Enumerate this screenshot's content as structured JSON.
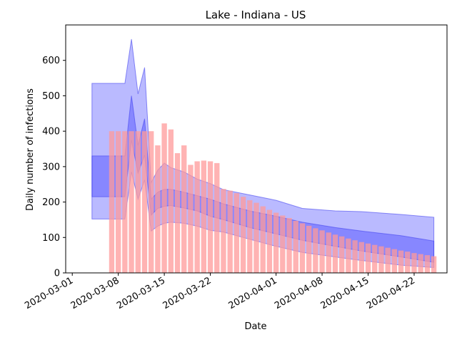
{
  "chart_data": {
    "type": "bar",
    "title": "Lake - Indiana - US",
    "xlabel": "Date",
    "ylabel": "Daily number of infections",
    "xlim": [
      "2020-02-29",
      "2020-04-27"
    ],
    "ylim": [
      0,
      700
    ],
    "x_ticks": [
      "2020-03-01",
      "2020-03-08",
      "2020-03-15",
      "2020-03-22",
      "2020-04-01",
      "2020-04-08",
      "2020-04-15",
      "2020-04-22"
    ],
    "y_ticks": [
      0,
      100,
      200,
      300,
      400,
      500,
      600
    ],
    "grid": false,
    "legend": "none",
    "colors": {
      "bars": "#ff9999",
      "band_fill": "#0000ff",
      "band_edge": "#4444ee"
    },
    "bars": {
      "x": [
        "2020-03-07",
        "2020-03-08",
        "2020-03-09",
        "2020-03-10",
        "2020-03-11",
        "2020-03-12",
        "2020-03-13",
        "2020-03-14",
        "2020-03-15",
        "2020-03-16",
        "2020-03-17",
        "2020-03-18",
        "2020-03-19",
        "2020-03-20",
        "2020-03-21",
        "2020-03-22",
        "2020-03-23",
        "2020-03-24",
        "2020-03-25",
        "2020-03-26",
        "2020-03-27",
        "2020-03-28",
        "2020-03-29",
        "2020-03-30",
        "2020-03-31",
        "2020-04-01",
        "2020-04-02",
        "2020-04-03",
        "2020-04-04",
        "2020-04-05",
        "2020-04-06",
        "2020-04-07",
        "2020-04-08",
        "2020-04-09",
        "2020-04-10",
        "2020-04-11",
        "2020-04-12",
        "2020-04-13",
        "2020-04-14",
        "2020-04-15",
        "2020-04-16",
        "2020-04-17",
        "2020-04-18",
        "2020-04-19",
        "2020-04-20",
        "2020-04-21",
        "2020-04-22",
        "2020-04-23",
        "2020-04-24",
        "2020-04-25"
      ],
      "values": [
        400,
        400,
        400,
        400,
        400,
        400,
        400,
        360,
        422,
        405,
        338,
        360,
        305,
        315,
        317,
        315,
        310,
        237,
        232,
        225,
        215,
        205,
        198,
        188,
        178,
        170,
        162,
        155,
        147,
        140,
        133,
        126,
        120,
        114,
        108,
        103,
        97,
        92,
        87,
        83,
        79,
        75,
        71,
        67,
        63,
        60,
        56,
        53,
        50,
        47
      ]
    },
    "bands": [
      {
        "x": [
          "2020-03-04",
          "2020-03-09",
          "2020-03-10",
          "2020-03-11",
          "2020-03-12",
          "2020-03-13",
          "2020-03-14",
          "2020-03-15",
          "2020-03-16",
          "2020-03-18",
          "2020-03-20",
          "2020-03-22",
          "2020-03-24",
          "2020-03-28",
          "2020-04-01",
          "2020-04-05",
          "2020-04-10",
          "2020-04-14",
          "2020-04-20",
          "2020-04-25"
        ],
        "upper": [
          535,
          535,
          660,
          505,
          580,
          255,
          290,
          310,
          297,
          285,
          265,
          252,
          235,
          220,
          205,
          182,
          175,
          173,
          165,
          157
        ],
        "lower": [
          152,
          152,
          285,
          208,
          262,
          118,
          132,
          140,
          143,
          140,
          132,
          120,
          115,
          95,
          75,
          58,
          45,
          35,
          22,
          15
        ]
      },
      {
        "x": [
          "2020-03-04",
          "2020-03-09",
          "2020-03-10",
          "2020-03-11",
          "2020-03-12",
          "2020-03-13",
          "2020-03-14",
          "2020-03-15",
          "2020-03-16",
          "2020-03-18",
          "2020-03-20",
          "2020-03-22",
          "2020-03-24",
          "2020-03-28",
          "2020-04-01",
          "2020-04-05",
          "2020-04-10",
          "2020-04-14",
          "2020-04-20",
          "2020-04-25"
        ],
        "upper": [
          330,
          330,
          500,
          360,
          435,
          208,
          228,
          236,
          236,
          228,
          218,
          208,
          195,
          175,
          160,
          143,
          128,
          118,
          105,
          90
        ],
        "lower": [
          215,
          215,
          375,
          282,
          332,
          163,
          182,
          188,
          190,
          183,
          175,
          160,
          150,
          128,
          110,
          92,
          75,
          62,
          45,
          30
        ]
      }
    ]
  }
}
